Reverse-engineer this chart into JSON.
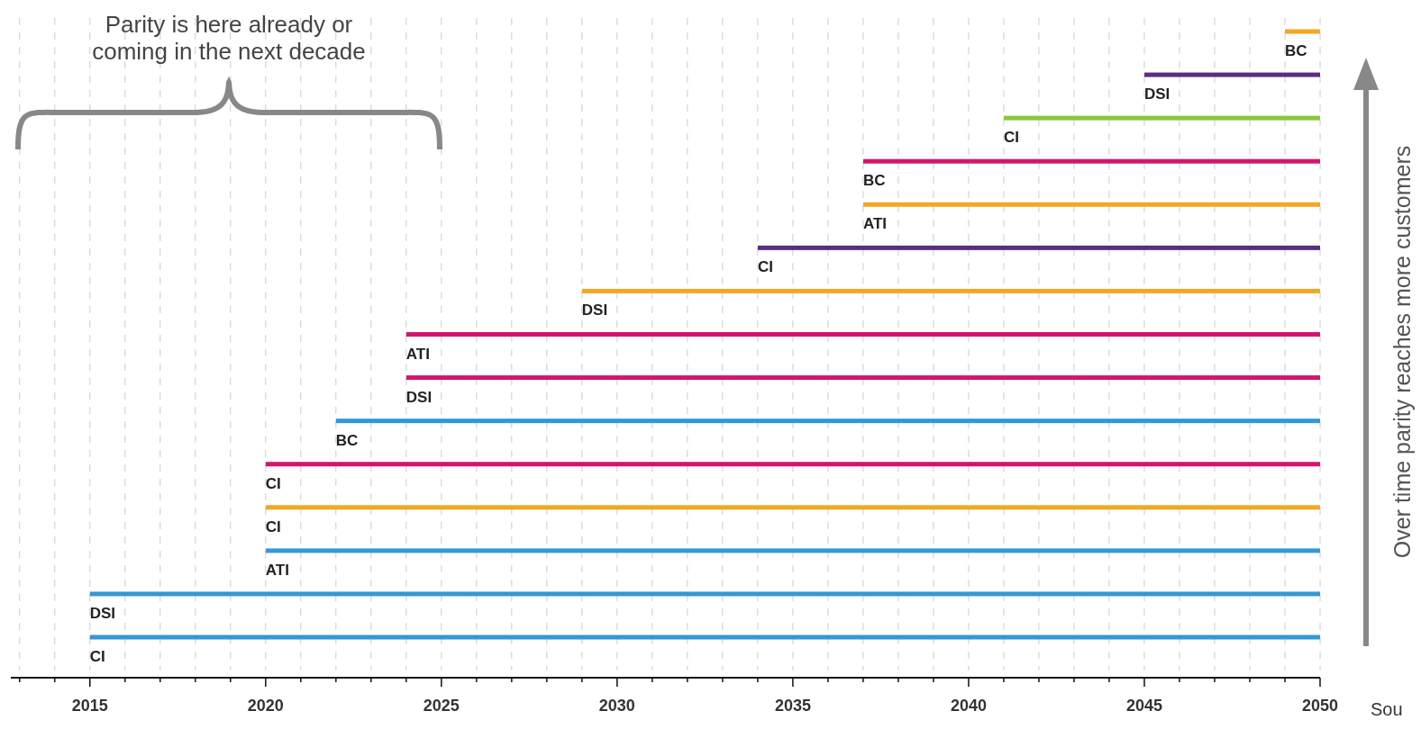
{
  "chart_data": {
    "type": "bar",
    "orientation": "horizontal",
    "ylabel": "Over time parity reaches more customers",
    "annotations": [
      "Parity is here already or coming in the next decade",
      "Sou"
    ],
    "categories": [
      "BC",
      "DSI",
      "CI",
      "BC",
      "ATI",
      "CI",
      "DSI",
      "ATI",
      "DSI",
      "BC",
      "CI",
      "CI",
      "ATI",
      "DSI",
      "CI"
    ],
    "base": [
      2049,
      2045,
      2041,
      2037,
      2037,
      2034,
      2029,
      2024,
      2024,
      2022,
      2020,
      2020,
      2020,
      2015,
      2015
    ],
    "values": [
      1,
      5,
      9,
      13,
      13,
      16,
      21,
      26,
      26,
      28,
      30,
      30,
      30,
      35,
      35
    ],
    "colors": [
      "#f5a623",
      "#5b2c83",
      "#8dc63f",
      "#d4156f",
      "#f5a623",
      "#5b2c83",
      "#f5a623",
      "#d4156f",
      "#d4156f",
      "#3399d4",
      "#d4156f",
      "#f5a623",
      "#3399d4",
      "#3399d4",
      "#3399d4"
    ],
    "xlim": [
      2012.75,
      2050
    ],
    "xticks": [
      {
        "value": 2013,
        "label": null
      },
      {
        "value": 2014,
        "label": null
      },
      2015,
      {
        "value": 2016,
        "label": null
      },
      {
        "value": 2017,
        "label": null
      },
      {
        "value": 2018,
        "label": null
      },
      {
        "value": 2019,
        "label": null
      },
      2020,
      {
        "value": 2021,
        "label": null
      },
      {
        "value": 2022,
        "label": null
      },
      {
        "value": 2023,
        "label": null
      },
      {
        "value": 2024,
        "label": null
      },
      2025,
      {
        "value": 2026,
        "label": null
      },
      {
        "value": 2027,
        "label": null
      },
      {
        "value": 2028,
        "label": null
      },
      {
        "value": 2029,
        "label": null
      },
      2030,
      {
        "value": 2031,
        "label": null
      },
      {
        "value": 2032,
        "label": null
      },
      {
        "value": 2033,
        "label": null
      },
      {
        "value": 2034,
        "label": null
      },
      2035,
      {
        "value": 2036,
        "label": null
      },
      {
        "value": 2037,
        "label": null
      },
      {
        "value": 2038,
        "label": null
      },
      {
        "value": 2039,
        "label": null
      },
      2040,
      {
        "value": 2041,
        "label": null
      },
      {
        "value": 2042,
        "label": null
      },
      {
        "value": 2043,
        "label": null
      },
      {
        "value": 2044,
        "label": null
      },
      2045,
      {
        "value": 2046,
        "label": null
      },
      {
        "value": 2047,
        "label": null
      },
      {
        "value": 2048,
        "label": null
      },
      {
        "value": 2049,
        "label": null
      },
      2050
    ],
    "grid": "x"
  }
}
